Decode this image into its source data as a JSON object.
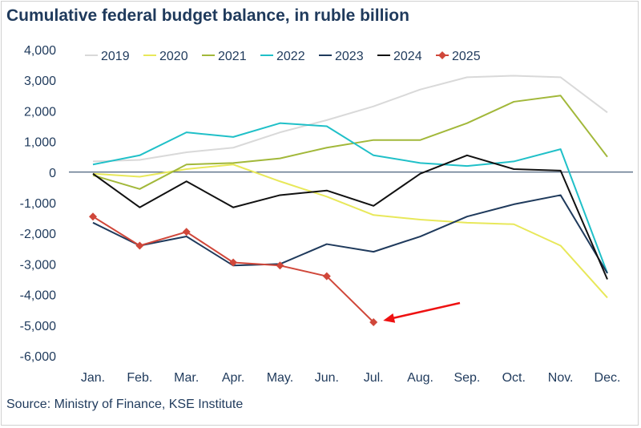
{
  "header": {
    "title": "Cumulative federal budget balance, in ruble billion"
  },
  "footer": {
    "source": "Source: Ministry of Finance, KSE Institute"
  },
  "chart_data": {
    "type": "line",
    "title": "Cumulative federal budget balance, in ruble billion",
    "xlabel": "",
    "ylabel": "",
    "ylim": [
      -6000,
      4000
    ],
    "yticks": [
      4000,
      3000,
      2000,
      1000,
      0,
      -1000,
      -2000,
      -3000,
      -4000,
      -5000,
      -6000
    ],
    "ytick_labels": [
      "4,000",
      "3,000",
      "2,000",
      "1,000",
      "0",
      "-1,000",
      "-2,000",
      "-3,000",
      "-4,000",
      "-5,000",
      "-6,000"
    ],
    "categories": [
      "Jan.",
      "Feb.",
      "Mar.",
      "Apr.",
      "May.",
      "Jun.",
      "Jul.",
      "Aug.",
      "Sep.",
      "Oct.",
      "Nov.",
      "Dec."
    ],
    "legend_position": "top",
    "series": [
      {
        "name": "2019",
        "color": "#d9d9d9",
        "marker": "none",
        "values": [
          350,
          400,
          650,
          800,
          1300,
          1700,
          2150,
          2700,
          3100,
          3150,
          3100,
          1950
        ]
      },
      {
        "name": "2020",
        "color": "#e8e85a",
        "marker": "none",
        "values": [
          -50,
          -150,
          100,
          250,
          -300,
          -800,
          -1400,
          -1550,
          -1650,
          -1700,
          -2400,
          -4100
        ]
      },
      {
        "name": "2021",
        "color": "#a2b83a",
        "marker": "none",
        "values": [
          -100,
          -550,
          250,
          300,
          450,
          800,
          1050,
          1050,
          1600,
          2300,
          2500,
          500
        ]
      },
      {
        "name": "2022",
        "color": "#20c0c8",
        "marker": "none",
        "values": [
          250,
          550,
          1300,
          1150,
          1600,
          1500,
          550,
          300,
          200,
          350,
          750,
          -3300
        ]
      },
      {
        "name": "2023",
        "color": "#1f3a5c",
        "marker": "none",
        "values": [
          -1650,
          -2400,
          -2100,
          -3050,
          -3000,
          -2350,
          -2600,
          -2100,
          -1450,
          -1050,
          -750,
          -3300
        ]
      },
      {
        "name": "2024",
        "color": "#111111",
        "marker": "none",
        "values": [
          -50,
          -1150,
          -300,
          -1150,
          -750,
          -600,
          -1100,
          -50,
          550,
          100,
          50,
          -3500
        ]
      },
      {
        "name": "2025",
        "color": "#d0473a",
        "marker": "diamond",
        "values": [
          -1450,
          -2400,
          -1950,
          -2950,
          -3050,
          -3400,
          -4900,
          null,
          null,
          null,
          null,
          null
        ]
      }
    ],
    "annotations": [
      {
        "type": "arrow",
        "color": "#ee1111",
        "points_to": "2025 Jul."
      }
    ]
  }
}
